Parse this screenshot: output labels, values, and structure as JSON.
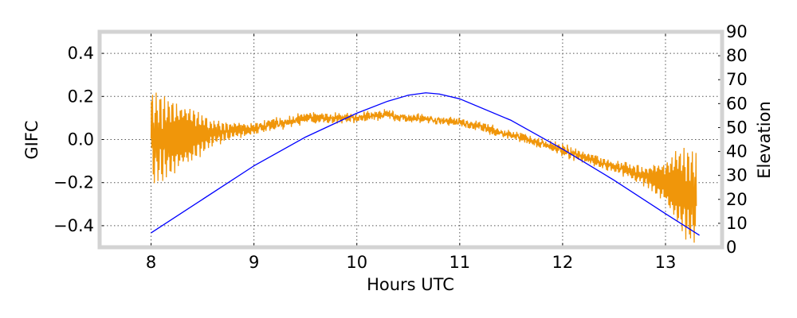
{
  "chart_data": {
    "type": "line",
    "xlabel": "Hours UTC",
    "ylabel": "GIFC",
    "y2label": "Elevation",
    "xlim": [
      7.5,
      13.55
    ],
    "ylim": [
      -0.5,
      0.5
    ],
    "y2lim": [
      0,
      90
    ],
    "xticks": [
      8,
      9,
      10,
      11,
      12,
      13
    ],
    "xtick_labels": [
      "8",
      "9",
      "10",
      "11",
      "12",
      "13"
    ],
    "yticks": [
      0.4,
      0.2,
      0.0,
      -0.2,
      -0.4
    ],
    "ytick_labels": [
      "0.4",
      "0.2",
      "0.0",
      "−0.2",
      "−0.4"
    ],
    "y2ticks": [
      90,
      80,
      70,
      60,
      50,
      40,
      30,
      20,
      10,
      0
    ],
    "y2tick_labels": [
      "90",
      "80",
      "70",
      "60",
      "50",
      "40",
      "30",
      "20",
      "10",
      "0"
    ],
    "grid": true,
    "colors": {
      "gifc": "#f0960a",
      "elevation": "#0000ff",
      "frame": "#d3d3d3",
      "grid": "#555555"
    },
    "series": [
      {
        "axis": "left",
        "color": "#f0960a",
        "note": "noisy trace; oscillation amplitude follows the envelope",
        "x": [
          8.0,
          8.2,
          8.4,
          8.6,
          8.8,
          9.0,
          9.2,
          9.4,
          9.5,
          9.6,
          9.8,
          10.0,
          10.2,
          10.3,
          10.4,
          10.6,
          10.8,
          11.0,
          11.2,
          11.4,
          11.6,
          11.8,
          12.0,
          12.2,
          12.4,
          12.6,
          12.8,
          13.0,
          13.1,
          13.2,
          13.3
        ],
        "y": [
          0.0,
          0.01,
          0.02,
          0.03,
          0.04,
          0.05,
          0.07,
          0.09,
          0.1,
          0.1,
          0.1,
          0.1,
          0.11,
          0.12,
          0.1,
          0.1,
          0.09,
          0.08,
          0.06,
          0.03,
          0.01,
          -0.02,
          -0.05,
          -0.08,
          -0.11,
          -0.14,
          -0.17,
          -0.2,
          -0.22,
          -0.25,
          -0.27
        ],
        "envelope": [
          0.2,
          0.18,
          0.13,
          0.05,
          0.03,
          0.025,
          0.02,
          0.02,
          0.02,
          0.02,
          0.015,
          0.015,
          0.015,
          0.015,
          0.01,
          0.01,
          0.01,
          0.01,
          0.015,
          0.015,
          0.015,
          0.015,
          0.02,
          0.02,
          0.02,
          0.025,
          0.04,
          0.1,
          0.18,
          0.2,
          0.2
        ]
      },
      {
        "axis": "right",
        "color": "#0000ff",
        "x": [
          8.0,
          8.5,
          9.0,
          9.5,
          10.0,
          10.3,
          10.5,
          10.67,
          10.8,
          11.0,
          11.5,
          12.0,
          12.5,
          13.0,
          13.33
        ],
        "y": [
          6,
          20,
          34,
          46,
          56,
          61,
          63.5,
          64.5,
          64,
          62,
          53,
          41,
          28,
          14,
          5
        ]
      }
    ]
  }
}
